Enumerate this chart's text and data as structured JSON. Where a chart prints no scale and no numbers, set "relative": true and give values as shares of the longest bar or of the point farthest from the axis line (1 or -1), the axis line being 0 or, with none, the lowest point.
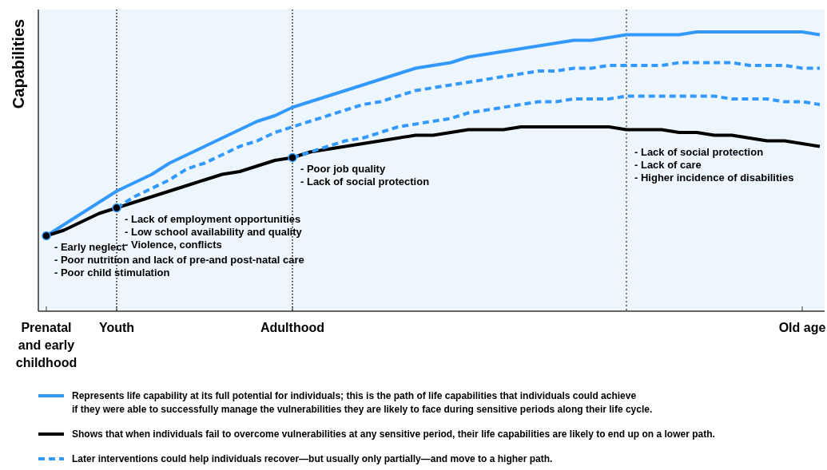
{
  "chart_data": {
    "type": "line",
    "ylabel": "Capabilities",
    "relative": true,
    "categories": [
      "Prenatal\nand early\nchildhood",
      null,
      null,
      null,
      "Youth",
      null,
      null,
      null,
      null,
      null,
      null,
      null,
      null,
      null,
      "Adulthood",
      null,
      null,
      null,
      null,
      null,
      null,
      null,
      null,
      null,
      null,
      null,
      null,
      null,
      null,
      null,
      null,
      null,
      null,
      null,
      null,
      null,
      null,
      null,
      null,
      null,
      null,
      null,
      null,
      "Old age",
      null
    ],
    "legend": "bottom",
    "series": [
      {
        "name": "Represents life capability at its full potential for individuals; this is the path of life capabilities that individuals could achieve\nif they were able to successfully manage the vulnerabilities they are likely to face during sensitive periods along their life cycle.",
        "color": "#3399ff",
        "line_style": "solid",
        "values": [
          0.27,
          0.31,
          0.35,
          0.39,
          0.43,
          0.46,
          0.49,
          0.53,
          0.56,
          0.59,
          0.62,
          0.65,
          0.68,
          0.7,
          0.73,
          0.75,
          0.77,
          0.79,
          0.81,
          0.83,
          0.85,
          0.87,
          0.88,
          0.89,
          0.91,
          0.92,
          0.93,
          0.94,
          0.95,
          0.96,
          0.97,
          0.97,
          0.98,
          0.99,
          0.99,
          0.99,
          0.99,
          1,
          1,
          1,
          1,
          1,
          1,
          1,
          0.99
        ]
      },
      {
        "name": "Shows that when individuals fail to overcome vulnerabilities at any sensitive period, their life capabilities are likely to end up on a lower path.",
        "color": "#000000",
        "line_style": "solid",
        "values": [
          0.27,
          0.29,
          0.32,
          0.35,
          0.37,
          0.39,
          0.41,
          0.43,
          0.45,
          0.47,
          0.49,
          0.5,
          0.52,
          0.54,
          0.55,
          0.57,
          0.58,
          0.59,
          0.6,
          0.61,
          0.62,
          0.63,
          0.63,
          0.64,
          0.65,
          0.65,
          0.65,
          0.66,
          0.66,
          0.66,
          0.66,
          0.66,
          0.66,
          0.65,
          0.65,
          0.65,
          0.64,
          0.64,
          0.63,
          0.63,
          0.62,
          0.61,
          0.61,
          0.6,
          0.59
        ]
      },
      {
        "name": "Later interventions could help individuals recover—but usually only partially—and move to a higher path.",
        "color": "#3399ff",
        "line_style": "dashed",
        "values": [
          null,
          null,
          null,
          null,
          0.37,
          0.41,
          0.44,
          0.47,
          0.51,
          0.53,
          0.56,
          0.59,
          0.61,
          0.64,
          0.66,
          0.68,
          0.7,
          0.72,
          0.74,
          0.75,
          0.77,
          0.79,
          0.8,
          0.81,
          0.82,
          0.83,
          0.84,
          0.85,
          0.86,
          0.86,
          0.87,
          0.87,
          0.88,
          0.88,
          0.88,
          0.88,
          0.89,
          0.89,
          0.89,
          0.89,
          0.88,
          0.88,
          0.88,
          0.87,
          0.87
        ]
      },
      {
        "color": "#3399ff",
        "line_style": "dashed",
        "values": [
          null,
          null,
          null,
          null,
          null,
          null,
          null,
          null,
          null,
          null,
          null,
          null,
          null,
          null,
          0.55,
          0.57,
          0.59,
          0.61,
          0.62,
          0.64,
          0.66,
          0.67,
          0.68,
          0.69,
          0.71,
          0.72,
          0.73,
          0.74,
          0.75,
          0.75,
          0.76,
          0.76,
          0.76,
          0.77,
          0.77,
          0.77,
          0.77,
          0.77,
          0.77,
          0.76,
          0.76,
          0.76,
          0.75,
          0.75,
          0.74
        ]
      },
      {
        "type": "scatter",
        "marker": "circle",
        "color": "#000000",
        "values": [
          0.27,
          null,
          null,
          null,
          0.37,
          null,
          null,
          null,
          null,
          null,
          null,
          null,
          null,
          null,
          0.55,
          null,
          null,
          null,
          null,
          null,
          null,
          null,
          null,
          null,
          null,
          null,
          null,
          null,
          null,
          null,
          null,
          null,
          null,
          null,
          null,
          null,
          null,
          null,
          null,
          null,
          null,
          null,
          null,
          null,
          null
        ]
      }
    ],
    "ref_lines": [
      {
        "axis": "x",
        "value": "Youth",
        "line_style": "dotted",
        "color": "#000000"
      },
      {
        "axis": "x",
        "value": "Adulthood",
        "line_style": "dotted",
        "color": "#000000"
      }
    ],
    "annotations": [
      "- Early neglect\n- Poor nutrition and lack of pre-and post-natal care\n- Poor child stimulation",
      "- Lack of employment opportunities\n- Low school availability and quality\n- Violence, conflicts",
      "- Poor job quality\n- Lack of social protection",
      "- Lack of social protection\n- Lack of care\n- Higher incidence of disabilities"
    ]
  }
}
